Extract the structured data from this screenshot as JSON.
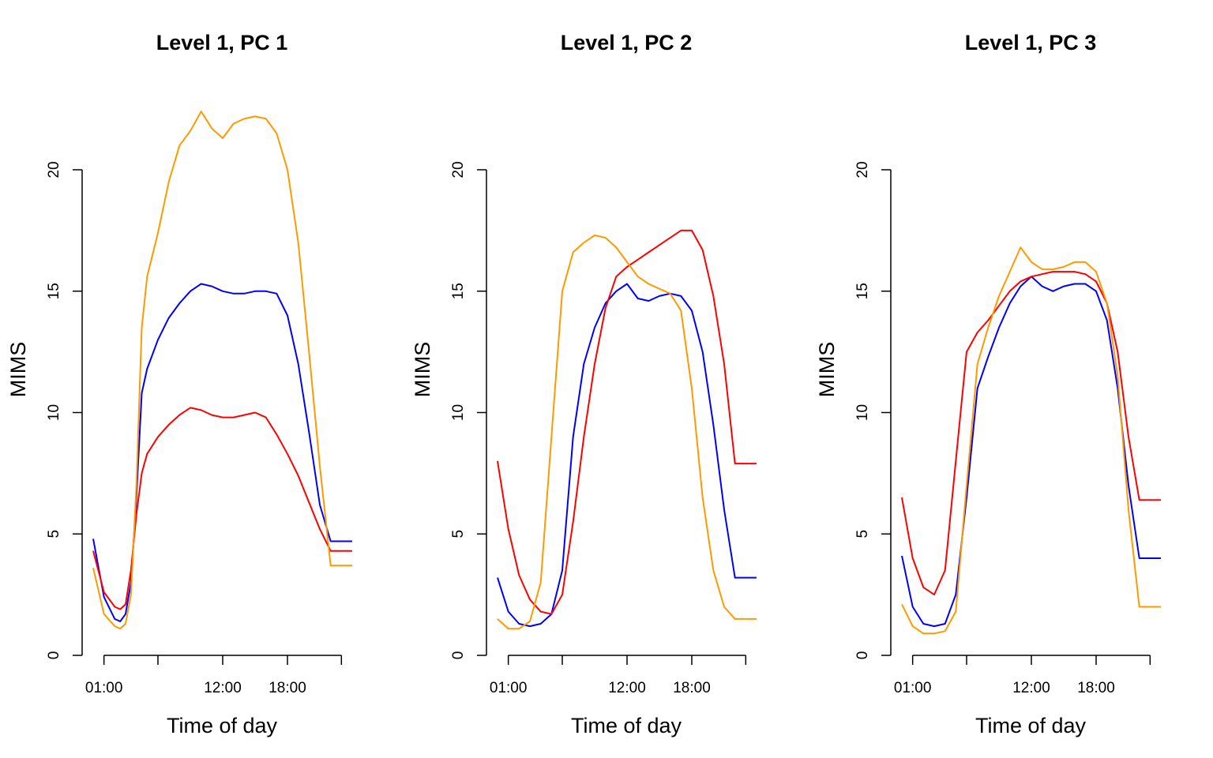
{
  "figure": {
    "line_colors": {
      "blue": "#0000ff",
      "red": "#ff0000",
      "orange": "#ff9900"
    }
  },
  "chart_data": [
    {
      "type": "line",
      "title": "Level 1, PC 1",
      "xlabel": "Time of day",
      "ylabel": "MIMS",
      "xlim": [
        0,
        24
      ],
      "ylim": [
        0,
        20
      ],
      "x_ticks": [
        1,
        6,
        12,
        18,
        23
      ],
      "x_tick_labels": [
        "01:00",
        "",
        "12:00",
        "18:00",
        ""
      ],
      "y_ticks": [
        0,
        5,
        10,
        15,
        20
      ],
      "y_tick_labels": [
        "0",
        "5",
        "10",
        "15",
        "20"
      ],
      "x": [
        0,
        1,
        2,
        2.5,
        3,
        3.5,
        4,
        4.5,
        5,
        6,
        7,
        8,
        9,
        10,
        11,
        12,
        13,
        14,
        15,
        16,
        17,
        18,
        19,
        20,
        21,
        22,
        23,
        23.5,
        24
      ],
      "series": [
        {
          "color": "#0000ff",
          "values": [
            4.8,
            2.4,
            1.5,
            1.4,
            1.7,
            3.0,
            6.5,
            10.8,
            11.8,
            13.0,
            13.9,
            14.5,
            15.0,
            15.3,
            15.2,
            15.0,
            14.9,
            14.9,
            15.0,
            15.0,
            14.9,
            14.0,
            12.0,
            9.2,
            6.2,
            4.7,
            4.7,
            4.7,
            4.7
          ]
        },
        {
          "color": "#ff0000",
          "values": [
            4.3,
            2.6,
            2.0,
            1.9,
            2.1,
            3.5,
            5.8,
            7.5,
            8.3,
            9.0,
            9.5,
            9.9,
            10.2,
            10.1,
            9.9,
            9.8,
            9.8,
            9.9,
            10.0,
            9.8,
            9.1,
            8.3,
            7.4,
            6.3,
            5.2,
            4.3,
            4.3,
            4.3,
            4.3
          ]
        },
        {
          "color": "#ff9900",
          "values": [
            3.6,
            1.7,
            1.2,
            1.1,
            1.3,
            2.5,
            7.0,
            13.5,
            15.6,
            17.4,
            19.5,
            21.0,
            21.6,
            22.4,
            21.7,
            21.3,
            21.9,
            22.1,
            22.2,
            22.1,
            21.5,
            20.0,
            17.0,
            12.5,
            7.8,
            3.7,
            3.7,
            3.7,
            3.7
          ]
        }
      ]
    },
    {
      "type": "line",
      "title": "Level 1, PC 2",
      "xlabel": "Time of day",
      "ylabel": "MIMS",
      "xlim": [
        0,
        24
      ],
      "ylim": [
        0,
        20
      ],
      "x_ticks": [
        1,
        6,
        12,
        18,
        23
      ],
      "x_tick_labels": [
        "01:00",
        "",
        "12:00",
        "18:00",
        ""
      ],
      "y_ticks": [
        0,
        5,
        10,
        15,
        20
      ],
      "y_tick_labels": [
        "0",
        "5",
        "10",
        "15",
        "20"
      ],
      "x": [
        0,
        1,
        2,
        3,
        4,
        5,
        6,
        7,
        8,
        9,
        10,
        11,
        12,
        13,
        14,
        15,
        16,
        17,
        18,
        19,
        20,
        21,
        22,
        23,
        24
      ],
      "series": [
        {
          "color": "#0000ff",
          "values": [
            3.2,
            1.8,
            1.3,
            1.2,
            1.3,
            1.7,
            3.5,
            9.0,
            12.0,
            13.5,
            14.5,
            15.0,
            15.3,
            14.7,
            14.6,
            14.8,
            14.9,
            14.8,
            14.2,
            12.5,
            9.5,
            6.0,
            3.2,
            3.2,
            3.2
          ]
        },
        {
          "color": "#ff0000",
          "values": [
            8.0,
            5.2,
            3.3,
            2.3,
            1.8,
            1.7,
            2.5,
            5.5,
            9.0,
            12.0,
            14.3,
            15.6,
            16.0,
            16.3,
            16.6,
            16.9,
            17.2,
            17.5,
            17.5,
            16.7,
            14.8,
            12.0,
            7.9,
            7.9,
            7.9
          ]
        },
        {
          "color": "#ff9900",
          "values": [
            1.5,
            1.1,
            1.1,
            1.4,
            3.0,
            9.0,
            15.0,
            16.6,
            17.0,
            17.3,
            17.2,
            16.8,
            16.2,
            15.6,
            15.3,
            15.1,
            14.9,
            14.2,
            11.0,
            6.5,
            3.5,
            2.0,
            1.5,
            1.5,
            1.5
          ]
        }
      ]
    },
    {
      "type": "line",
      "title": "Level 1, PC 3",
      "xlabel": "Time of day",
      "ylabel": "MIMS",
      "xlim": [
        0,
        24
      ],
      "ylim": [
        0,
        20
      ],
      "x_ticks": [
        1,
        6,
        12,
        18,
        23
      ],
      "x_tick_labels": [
        "01:00",
        "",
        "12:00",
        "18:00",
        ""
      ],
      "y_ticks": [
        0,
        5,
        10,
        15,
        20
      ],
      "y_tick_labels": [
        "0",
        "5",
        "10",
        "15",
        "20"
      ],
      "x": [
        0,
        1,
        2,
        3,
        4,
        5,
        6,
        7,
        8,
        9,
        10,
        11,
        12,
        13,
        14,
        15,
        16,
        17,
        18,
        19,
        20,
        21,
        22,
        23,
        24
      ],
      "series": [
        {
          "color": "#0000ff",
          "values": [
            4.1,
            2.0,
            1.3,
            1.2,
            1.3,
            2.5,
            6.5,
            11.0,
            12.3,
            13.5,
            14.5,
            15.2,
            15.6,
            15.2,
            15.0,
            15.2,
            15.3,
            15.3,
            15.0,
            13.8,
            11.0,
            7.0,
            4.0,
            4.0,
            4.0
          ]
        },
        {
          "color": "#ff0000",
          "values": [
            6.5,
            4.0,
            2.8,
            2.5,
            3.5,
            8.0,
            12.5,
            13.3,
            13.8,
            14.4,
            15.0,
            15.4,
            15.6,
            15.7,
            15.8,
            15.8,
            15.8,
            15.7,
            15.4,
            14.5,
            12.5,
            9.0,
            6.4,
            6.4,
            6.4
          ]
        },
        {
          "color": "#ff9900",
          "values": [
            2.1,
            1.2,
            0.9,
            0.9,
            1.0,
            1.8,
            7.0,
            12.0,
            13.5,
            14.8,
            15.8,
            16.8,
            16.2,
            15.9,
            15.9,
            16.0,
            16.2,
            16.2,
            15.8,
            14.5,
            11.5,
            6.0,
            2.0,
            2.0,
            2.0
          ]
        }
      ]
    }
  ]
}
